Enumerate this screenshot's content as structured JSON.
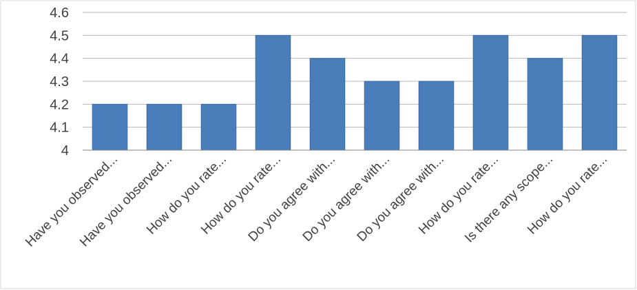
{
  "chart_data": {
    "type": "bar",
    "title": "",
    "xlabel": "",
    "ylabel": "",
    "ylim": [
      4,
      4.6
    ],
    "yticks": [
      "4",
      "4.1",
      "4.2",
      "4.3",
      "4.4",
      "4.5",
      "4.6"
    ],
    "ytick_values": [
      4,
      4.1,
      4.2,
      4.3,
      4.4,
      4.5,
      4.6
    ],
    "grid": true,
    "legend": "none",
    "bar_color": "#4a7ebb",
    "categories": [
      "Have you observed...",
      "Have you observed...",
      "How do you rate...",
      "How do you rate...",
      "Do you agree with...",
      "Do you agree with...",
      "Do you agree with...",
      "How do you rate...",
      "Is there any scope...",
      "How do you rate..."
    ],
    "values": [
      4.2,
      4.2,
      4.2,
      4.5,
      4.4,
      4.3,
      4.3,
      4.5,
      4.4,
      4.5
    ]
  }
}
